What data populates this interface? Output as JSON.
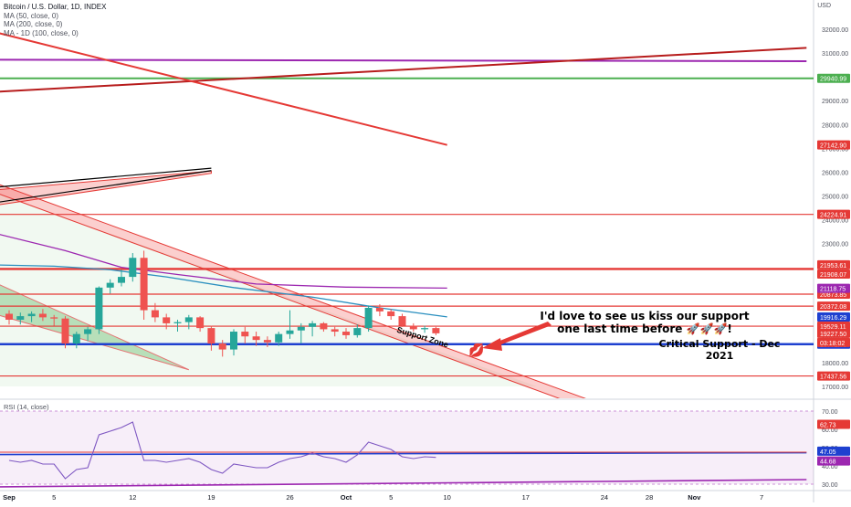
{
  "legend": {
    "title": "Bitcoin / U.S. Dollar, 1D, INDEX",
    "ma50": "MA (50, close, 0)",
    "ma200": "MA (200, close, 0)",
    "ma100": "MA - 1D (100, close, 0)"
  },
  "currency": "USD",
  "annotations": {
    "kiss_line1": "I'd love to see us kiss our support",
    "kiss_line2": "one last time before 🚀🚀🚀!",
    "critical_support": "Critical Support - Dec 2021",
    "support_zone": "Support Zone",
    "kiss_emoji": "💋"
  },
  "rsi_label": "RSI (14, close)",
  "colors": {
    "up": "#26a69a",
    "down": "#ef5350",
    "red_line": "#e53935",
    "green_line": "#4caf50",
    "purple": "#9c27b0",
    "blue_support": "#1e40d0",
    "ma50_blue": "#2a8fbf",
    "rsi_line": "#7e57c2"
  },
  "chart_data": [
    {
      "type": "candlestick",
      "title": "Bitcoin / U.S. Dollar, 1D, INDEX",
      "ylim": [
        16500,
        33000
      ],
      "y_ticks": [
        17000,
        18000,
        19000,
        20000,
        21000,
        22000,
        23000,
        24000,
        25000,
        26000,
        27000,
        28000,
        29000,
        30000,
        31000,
        32000
      ],
      "x_tick_labels": [
        {
          "label": "Sep",
          "day": 0
        },
        {
          "label": "5",
          "day": 4
        },
        {
          "label": "12",
          "day": 11
        },
        {
          "label": "19",
          "day": 18
        },
        {
          "label": "26",
          "day": 25
        },
        {
          "label": "Oct",
          "day": 30
        },
        {
          "label": "5",
          "day": 34
        },
        {
          "label": "10",
          "day": 39
        },
        {
          "label": "17",
          "day": 46
        },
        {
          "label": "24",
          "day": 53
        },
        {
          "label": "28",
          "day": 57
        },
        {
          "label": "Nov",
          "day": 61
        },
        {
          "label": "7",
          "day": 67
        }
      ],
      "candles": [
        {
          "day": 0,
          "o": 20050,
          "h": 20200,
          "l": 19600,
          "c": 19800
        },
        {
          "day": 1,
          "o": 19800,
          "h": 20100,
          "l": 19600,
          "c": 19950
        },
        {
          "day": 2,
          "o": 19950,
          "h": 20150,
          "l": 19700,
          "c": 20050
        },
        {
          "day": 3,
          "o": 20050,
          "h": 20250,
          "l": 19750,
          "c": 19900
        },
        {
          "day": 4,
          "o": 19900,
          "h": 20000,
          "l": 19550,
          "c": 19850
        },
        {
          "day": 5,
          "o": 19850,
          "h": 19950,
          "l": 18600,
          "c": 18800
        },
        {
          "day": 6,
          "o": 18800,
          "h": 19300,
          "l": 18600,
          "c": 19200
        },
        {
          "day": 7,
          "o": 19200,
          "h": 19500,
          "l": 18900,
          "c": 19400
        },
        {
          "day": 8,
          "o": 19400,
          "h": 21200,
          "l": 19200,
          "c": 21150
        },
        {
          "day": 9,
          "o": 21150,
          "h": 21500,
          "l": 20900,
          "c": 21350
        },
        {
          "day": 10,
          "o": 21350,
          "h": 21900,
          "l": 21200,
          "c": 21600
        },
        {
          "day": 11,
          "o": 21600,
          "h": 22600,
          "l": 21400,
          "c": 22400
        },
        {
          "day": 12,
          "o": 22400,
          "h": 22700,
          "l": 19800,
          "c": 20200
        },
        {
          "day": 13,
          "o": 20200,
          "h": 20500,
          "l": 19700,
          "c": 19900
        },
        {
          "day": 14,
          "o": 19900,
          "h": 20050,
          "l": 19400,
          "c": 19650
        },
        {
          "day": 15,
          "o": 19650,
          "h": 19800,
          "l": 19300,
          "c": 19700
        },
        {
          "day": 16,
          "o": 19700,
          "h": 20000,
          "l": 19400,
          "c": 19900
        },
        {
          "day": 17,
          "o": 19900,
          "h": 19950,
          "l": 19300,
          "c": 19450
        },
        {
          "day": 18,
          "o": 19450,
          "h": 19550,
          "l": 18500,
          "c": 18800
        },
        {
          "day": 19,
          "o": 18800,
          "h": 18950,
          "l": 18250,
          "c": 18550
        },
        {
          "day": 20,
          "o": 18550,
          "h": 19400,
          "l": 18300,
          "c": 19300
        },
        {
          "day": 21,
          "o": 19300,
          "h": 19500,
          "l": 18800,
          "c": 19100
        },
        {
          "day": 22,
          "o": 19100,
          "h": 19300,
          "l": 18700,
          "c": 18950
        },
        {
          "day": 23,
          "o": 18950,
          "h": 19100,
          "l": 18650,
          "c": 18850
        },
        {
          "day": 24,
          "o": 18850,
          "h": 19300,
          "l": 18700,
          "c": 19200
        },
        {
          "day": 25,
          "o": 19200,
          "h": 20200,
          "l": 19000,
          "c": 19350
        },
        {
          "day": 26,
          "o": 19350,
          "h": 19650,
          "l": 18800,
          "c": 19500
        },
        {
          "day": 27,
          "o": 19500,
          "h": 19750,
          "l": 19100,
          "c": 19650
        },
        {
          "day": 28,
          "o": 19650,
          "h": 19700,
          "l": 19300,
          "c": 19400
        },
        {
          "day": 29,
          "o": 19400,
          "h": 19500,
          "l": 19100,
          "c": 19300
        },
        {
          "day": 30,
          "o": 19300,
          "h": 19450,
          "l": 19000,
          "c": 19150
        },
        {
          "day": 31,
          "o": 19150,
          "h": 19600,
          "l": 19050,
          "c": 19450
        },
        {
          "day": 32,
          "o": 19450,
          "h": 20400,
          "l": 19300,
          "c": 20300
        },
        {
          "day": 33,
          "o": 20300,
          "h": 20450,
          "l": 19950,
          "c": 20150
        },
        {
          "day": 34,
          "o": 20150,
          "h": 20250,
          "l": 19800,
          "c": 19950
        },
        {
          "day": 35,
          "o": 19950,
          "h": 20050,
          "l": 19500,
          "c": 19550
        },
        {
          "day": 36,
          "o": 19550,
          "h": 19650,
          "l": 19300,
          "c": 19400
        },
        {
          "day": 37,
          "o": 19400,
          "h": 19550,
          "l": 19250,
          "c": 19450
        },
        {
          "day": 38,
          "o": 19450,
          "h": 19500,
          "l": 19150,
          "c": 19230
        }
      ],
      "horizontal_levels": [
        {
          "value": 29940.99,
          "label": "29940.99",
          "color": "green"
        },
        {
          "value": 24224.91,
          "label": "24224.91",
          "color": "red"
        },
        {
          "value": 21953.61,
          "label": "21953.61",
          "color": "red"
        },
        {
          "value": 21908.07,
          "label": "21908.07",
          "color": "red"
        },
        {
          "value": 20873.85,
          "label": "20873.85",
          "color": "red"
        },
        {
          "value": 20372.08,
          "label": "20372.08",
          "color": "red"
        },
        {
          "value": 19529.11,
          "label": "19529.11",
          "color": "red"
        },
        {
          "value": 18771.75,
          "label": "18771.75",
          "color": "blue"
        },
        {
          "value": 17437.56,
          "label": "17437.56",
          "color": "red"
        }
      ],
      "price_tags": [
        {
          "value": 27142.9,
          "label": "27142.90",
          "color": "red"
        },
        {
          "value": 21118.75,
          "label": "21118.75",
          "color": "purple"
        },
        {
          "value": 19916.29,
          "label": "19916.29",
          "color": "blue"
        },
        {
          "value": 19227.5,
          "label": "19227.50",
          "color": "red"
        },
        {
          "value": 19227.5,
          "label": "03:18:02",
          "color": "red",
          "countdown": true
        }
      ],
      "trendlines": [
        {
          "name": "purple-upper",
          "points": [
            [
              -1,
              30720
            ],
            [
              71,
              30660
            ]
          ],
          "color": "purple"
        },
        {
          "name": "rising-red",
          "points": [
            [
              -1,
              29380
            ],
            [
              71,
              31220
            ]
          ],
          "color": "darkred"
        },
        {
          "name": "falling-red",
          "points": [
            [
              -1,
              31850
            ],
            [
              39,
              27140
            ]
          ],
          "color": "red"
        },
        {
          "name": "ma200",
          "points": [
            [
              -1,
              23400
            ],
            [
              5,
              22700
            ],
            [
              10,
              22000
            ],
            [
              15,
              21700
            ],
            [
              22,
              21300
            ],
            [
              30,
              21170
            ],
            [
              39,
              21130
            ]
          ],
          "color": "purple"
        },
        {
          "name": "ma50",
          "points": [
            [
              -1,
              22100
            ],
            [
              4,
              22050
            ],
            [
              9,
              21900
            ],
            [
              14,
              21600
            ],
            [
              20,
              21150
            ],
            [
              27,
              20750
            ],
            [
              33,
              20300
            ],
            [
              39,
              19920
            ]
          ],
          "color": "blue"
        },
        {
          "name": "critical-support",
          "points": [
            [
              -1,
              18771.75
            ],
            [
              71,
              18771.75
            ]
          ],
          "color": "blue"
        }
      ],
      "channels": [
        {
          "name": "descending-support-zone",
          "upper": [
            [
              -1,
              25500
            ],
            [
              53,
              16200
            ]
          ],
          "lower": [
            [
              -1,
              25100
            ],
            [
              53,
              15800
            ]
          ],
          "color": "red"
        },
        {
          "name": "rising-wedge",
          "upper": [
            [
              -1,
              25260
            ],
            [
              18,
              26050
            ]
          ],
          "lower": [
            [
              -1,
              24620
            ],
            [
              18,
              25950
            ]
          ],
          "color": "red"
        },
        {
          "name": "falling-wedge",
          "upper": [
            [
              -1,
              21300
            ],
            [
              16,
              17700
            ]
          ],
          "lower": [
            [
              -1,
              20000
            ],
            [
              16,
              17700
            ]
          ],
          "color": "green"
        }
      ],
      "green_triangle": {
        "points": [
          [
            -1,
            17000
          ],
          [
            -1,
            25100
          ],
          [
            47,
            17000
          ]
        ]
      }
    },
    {
      "type": "line",
      "title": "RSI (14, close)",
      "ylim": [
        28,
        72
      ],
      "y_ticks": [
        30,
        40,
        50,
        60,
        70
      ],
      "band": [
        30,
        70
      ],
      "series": [
        {
          "x": [
            0,
            1,
            2,
            3,
            4,
            5,
            6,
            7,
            8,
            9,
            10,
            11,
            12,
            13,
            14,
            15,
            16,
            17,
            18,
            19,
            20,
            21,
            22,
            23,
            24,
            25,
            26,
            27,
            28,
            29,
            30,
            31,
            32,
            33,
            34,
            35,
            36,
            37,
            38
          ],
          "y": [
            43,
            42,
            43,
            41,
            41,
            33,
            38,
            39,
            57,
            59,
            61,
            64,
            43,
            43,
            42,
            43,
            44,
            42,
            38,
            36,
            41,
            40,
            39,
            39,
            42,
            44,
            45,
            47,
            45,
            44,
            42,
            46,
            53,
            51,
            49,
            45,
            44,
            45,
            44.68
          ]
        }
      ],
      "tags": [
        {
          "value": 62.73,
          "label": "62.73",
          "color": "red"
        },
        {
          "value": 47.05,
          "label": "47.05",
          "color": "blue"
        },
        {
          "value": 44.68,
          "label": "44.68",
          "color": "purple"
        }
      ],
      "trendlines": [
        {
          "name": "rsi-support",
          "points": [
            [
              -1,
              46.2
            ],
            [
              71,
              47.2
            ]
          ],
          "color": "blue"
        },
        {
          "name": "rsi-lower",
          "points": [
            [
              -1,
              28.5
            ],
            [
              71,
              32.5
            ]
          ],
          "color": "purple"
        },
        {
          "name": "rsi-resistance",
          "points": [
            [
              -1,
              47.5
            ],
            [
              71,
              47.5
            ]
          ],
          "color": "red"
        }
      ]
    }
  ]
}
